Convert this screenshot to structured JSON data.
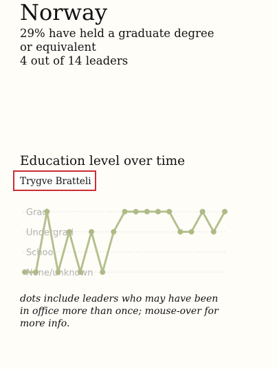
{
  "header": {
    "country": "Norway",
    "stat_line1": "29% have held a graduate degree",
    "stat_line2": "or equivalent",
    "stat_line3": "4 out of 14 leaders"
  },
  "section_title": "Education level over time",
  "tooltip": {
    "leader_name": "Trygve Bratteli"
  },
  "note": "dots include leaders who may have been in office more than once; mouse-over for more info.",
  "colors": {
    "line": "#b5c08f",
    "dot": "#aebb86",
    "gridline": "#cfcfcf",
    "label": "#b3b3b3",
    "highlight_border": "#cc2b33"
  },
  "chart_data": {
    "type": "line",
    "title": "Education level over time",
    "categories": [
      "None/unknown",
      "School",
      "Undergrad",
      "Grad"
    ],
    "category_labels": [
      "None/unknown",
      "School",
      "Undergrad",
      "Grad"
    ],
    "x": [
      1,
      2,
      3,
      4,
      5,
      6,
      7,
      8,
      9,
      10,
      11,
      12,
      13,
      14,
      15,
      16,
      17,
      18,
      19
    ],
    "values": [
      0,
      0,
      3,
      0,
      2,
      0,
      2,
      0,
      2,
      3,
      3,
      3,
      3,
      3,
      2,
      2,
      3,
      2,
      3
    ],
    "ylim": [
      0,
      3
    ],
    "grid": true,
    "gridline_style": "dotted",
    "legend": "none"
  }
}
